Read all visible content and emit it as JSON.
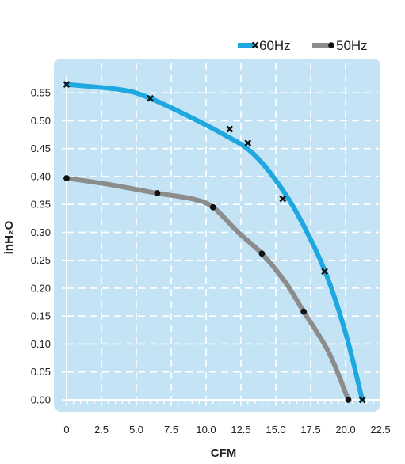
{
  "chart_data": {
    "type": "line",
    "xlabel": "CFM",
    "ylabel": "inH₂O",
    "xlim": [
      0,
      22.5
    ],
    "ylim": [
      0,
      0.58
    ],
    "grid": true,
    "legend_position": "top-right",
    "x_ticks": [
      {
        "v": 0,
        "label": "0"
      },
      {
        "v": 2.5,
        "label": "2.5"
      },
      {
        "v": 5,
        "label": "5.0"
      },
      {
        "v": 7.5,
        "label": "7.5"
      },
      {
        "v": 10,
        "label": "10.0"
      },
      {
        "v": 12.5,
        "label": "12.5"
      },
      {
        "v": 15,
        "label": "15.0"
      },
      {
        "v": 17.5,
        "label": "17.5"
      },
      {
        "v": 20,
        "label": "20.0"
      },
      {
        "v": 22.5,
        "label": "22.5"
      }
    ],
    "y_ticks": [
      {
        "v": 0,
        "label": "0.00"
      },
      {
        "v": 0.05,
        "label": "0.05"
      },
      {
        "v": 0.1,
        "label": "0.10"
      },
      {
        "v": 0.15,
        "label": "0.15"
      },
      {
        "v": 0.2,
        "label": "0.20"
      },
      {
        "v": 0.25,
        "label": "0.25"
      },
      {
        "v": 0.3,
        "label": "0.30"
      },
      {
        "v": 0.35,
        "label": "0.35"
      },
      {
        "v": 0.4,
        "label": "0.40"
      },
      {
        "v": 0.45,
        "label": "0.45"
      },
      {
        "v": 0.5,
        "label": "0.50"
      },
      {
        "v": 0.55,
        "label": "0.55"
      }
    ],
    "series": [
      {
        "name": "60Hz",
        "color": "#1fa8e0",
        "marker": "x",
        "curve": [
          [
            0,
            0.565
          ],
          [
            4,
            0.555
          ],
          [
            6,
            0.54
          ],
          [
            9,
            0.505
          ],
          [
            11.5,
            0.472
          ],
          [
            13.2,
            0.445
          ],
          [
            14.8,
            0.4
          ],
          [
            16.5,
            0.335
          ],
          [
            18.5,
            0.232
          ],
          [
            20,
            0.12
          ],
          [
            21.2,
            0
          ]
        ],
        "points": [
          [
            0,
            0.565
          ],
          [
            6,
            0.54
          ],
          [
            11.7,
            0.485
          ],
          [
            13,
            0.46
          ],
          [
            15.5,
            0.36
          ],
          [
            18.5,
            0.23
          ],
          [
            21.2,
            0
          ]
        ]
      },
      {
        "name": "50Hz",
        "color": "#8c8c8c",
        "marker": "dot",
        "curve": [
          [
            0,
            0.397
          ],
          [
            3,
            0.386
          ],
          [
            6.5,
            0.37
          ],
          [
            9,
            0.36
          ],
          [
            10.5,
            0.345
          ],
          [
            12.3,
            0.3
          ],
          [
            14,
            0.262
          ],
          [
            15.7,
            0.21
          ],
          [
            17,
            0.158
          ],
          [
            18.8,
            0.085
          ],
          [
            20.2,
            0
          ]
        ],
        "points": [
          [
            0,
            0.397
          ],
          [
            6.5,
            0.37
          ],
          [
            10.5,
            0.345
          ],
          [
            14,
            0.262
          ],
          [
            17,
            0.158
          ],
          [
            20.2,
            0
          ]
        ]
      }
    ]
  }
}
